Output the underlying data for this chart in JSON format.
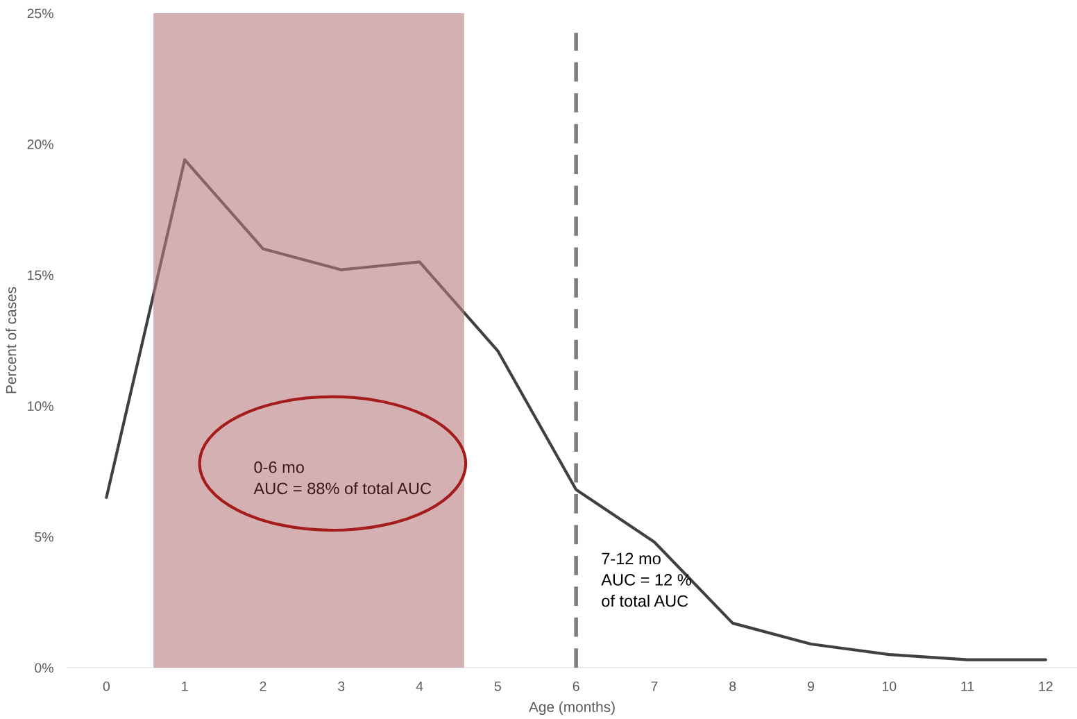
{
  "chart_data": {
    "type": "line",
    "xlabel": "Age (months)",
    "ylabel": "Percent of cases",
    "x": [
      0,
      1,
      2,
      3,
      4,
      5,
      6,
      7,
      8,
      9,
      10,
      11,
      12
    ],
    "series": [
      {
        "color": "#404040",
        "values": [
          6.5,
          19.4,
          16.0,
          15.2,
          15.5,
          12.1,
          6.8,
          4.8,
          1.7,
          0.9,
          0.5,
          0.3,
          0.3
        ]
      }
    ],
    "xlim": [
      -0.5,
      12.4
    ],
    "xticks": [
      0,
      1,
      2,
      3,
      4,
      5,
      6,
      7,
      8,
      9,
      10,
      11,
      12
    ],
    "ylim": [
      0,
      25
    ],
    "yticks": [
      {
        "value": 0,
        "label": "0%"
      },
      {
        "value": 5,
        "label": "5%"
      },
      {
        "value": 10,
        "label": "10%"
      },
      {
        "value": 15,
        "label": "15%"
      },
      {
        "value": 20,
        "label": "20%"
      },
      {
        "value": 25,
        "label": "25%"
      }
    ],
    "bands": [
      {
        "axis": "x",
        "from": 0.6,
        "to": 4.57,
        "color": "#b77b7e"
      }
    ],
    "ref_lines": [
      {
        "axis": "x",
        "value": 6,
        "color": "#7f7f7f",
        "line_style": "dashed"
      }
    ],
    "annotations": [
      "0-6 mo\nAUC = 88% of total AUC",
      "7-12 mo\nAUC = 12 %\nof total AUC"
    ],
    "marker": "none",
    "line_style": "solid"
  }
}
